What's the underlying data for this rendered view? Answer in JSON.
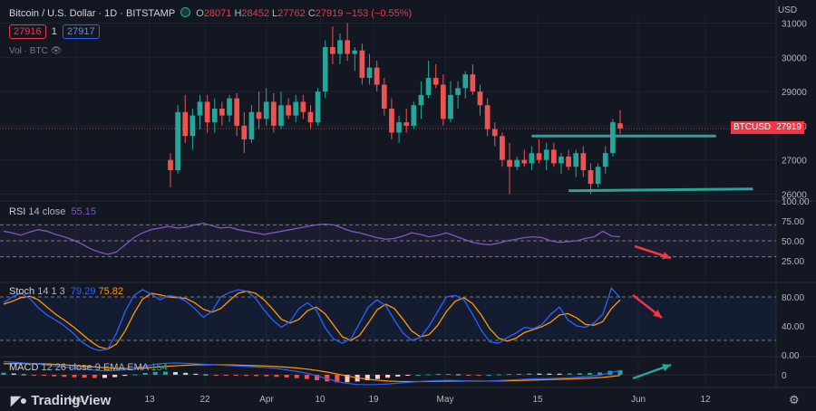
{
  "header": {
    "symbol": "Bitcoin / U.S. Dollar · 1D · BITSTAMP",
    "ohlc": {
      "o_label": "O",
      "o": "28071",
      "h_label": "H",
      "h": "28452",
      "l_label": "L",
      "l": "27762",
      "c_label": "C",
      "c": "27919",
      "change": "−153 (−0.55%)"
    },
    "bid": "27916",
    "spread": "1",
    "ask": "27917",
    "volume_label": "Vol · BTC"
  },
  "axis_currency": "USD",
  "price_label": {
    "symbol": "BTCUSD",
    "value": "27919"
  },
  "rsi_legend": {
    "name": "RSI",
    "params": "14 close",
    "value": "55.15"
  },
  "stoch_legend": {
    "name": "Stoch",
    "params": "14 1 3",
    "k": "79.29",
    "d": "75.82"
  },
  "macd_legend": {
    "name": "MACD",
    "params": "12 26 close 9 EMA EMA",
    "value": "154"
  },
  "logo": "TradingView",
  "colors": {
    "up": "#26a69a",
    "down": "#ef5350",
    "rsi": "#7e57c2",
    "stoch_k": "#2962ff",
    "stoch_d": "#ff9800",
    "annotation_arrow": "#f23645",
    "trend_line": "#26a69a",
    "background": "#131722"
  },
  "chart_data": {
    "type": "candlestick",
    "x_ticks": [
      "Mar",
      "13",
      "22",
      "Apr",
      "10",
      "19",
      "May",
      "15",
      "Jun",
      "12"
    ],
    "price_ticks": [
      31000,
      30000,
      29000,
      28000,
      27000,
      26000
    ],
    "price_range": [
      25800,
      31200
    ],
    "candles": [
      [
        27000,
        27200,
        26200,
        26700
      ],
      [
        26700,
        28600,
        26600,
        28400
      ],
      [
        28400,
        28900,
        27500,
        27700
      ],
      [
        27700,
        28500,
        27300,
        28300
      ],
      [
        28300,
        28900,
        27900,
        28700
      ],
      [
        28700,
        28900,
        27800,
        28100
      ],
      [
        28100,
        28800,
        27800,
        28500
      ],
      [
        28500,
        28700,
        28000,
        28300
      ],
      [
        28300,
        28900,
        28100,
        28800
      ],
      [
        28800,
        28950,
        27700,
        28000
      ],
      [
        28000,
        28400,
        27200,
        27600
      ],
      [
        27600,
        28600,
        27500,
        28400
      ],
      [
        28400,
        29000,
        27900,
        28200
      ],
      [
        28200,
        29100,
        28000,
        28700
      ],
      [
        28700,
        28950,
        27800,
        28000
      ],
      [
        28000,
        29000,
        27900,
        28600
      ],
      [
        28600,
        28800,
        28200,
        28300
      ],
      [
        28300,
        28900,
        28100,
        28700
      ],
      [
        28700,
        28900,
        28200,
        28400
      ],
      [
        28400,
        28600,
        27900,
        28100
      ],
      [
        28100,
        29100,
        28000,
        29000
      ],
      [
        29000,
        30500,
        28800,
        30300
      ],
      [
        30300,
        30900,
        29800,
        30100
      ],
      [
        30100,
        30700,
        29800,
        30500
      ],
      [
        30500,
        31000,
        29900,
        30100
      ],
      [
        30100,
        30300,
        29600,
        30200
      ],
      [
        30200,
        30400,
        29200,
        29400
      ],
      [
        29400,
        30100,
        29200,
        29700
      ],
      [
        29700,
        29900,
        29000,
        29200
      ],
      [
        29200,
        29400,
        28300,
        28500
      ],
      [
        28500,
        28800,
        27600,
        27800
      ],
      [
        27800,
        28300,
        27500,
        28100
      ],
      [
        28100,
        28500,
        27800,
        28000
      ],
      [
        28000,
        28700,
        27900,
        28600
      ],
      [
        28600,
        29300,
        28200,
        28900
      ],
      [
        28900,
        29900,
        28800,
        29400
      ],
      [
        29400,
        29800,
        29100,
        29200
      ],
      [
        29200,
        29500,
        28000,
        28200
      ],
      [
        28200,
        29300,
        28100,
        28900
      ],
      [
        28900,
        29300,
        28500,
        29100
      ],
      [
        29100,
        29600,
        28800,
        29500
      ],
      [
        29500,
        29800,
        28900,
        29000
      ],
      [
        29000,
        29200,
        28300,
        28600
      ],
      [
        28600,
        28800,
        27700,
        27900
      ],
      [
        27900,
        28100,
        27400,
        27700
      ],
      [
        27700,
        27800,
        26800,
        27000
      ],
      [
        27000,
        27500,
        26000,
        26800
      ],
      [
        26800,
        27100,
        26700,
        27000
      ],
      [
        27000,
        27300,
        26800,
        26900
      ],
      [
        26900,
        27400,
        26700,
        27200
      ],
      [
        27200,
        27600,
        26900,
        27000
      ],
      [
        27000,
        27500,
        26700,
        27300
      ],
      [
        27300,
        27500,
        26800,
        26900
      ],
      [
        26900,
        27200,
        26600,
        27100
      ],
      [
        27100,
        27300,
        26700,
        26800
      ],
      [
        26800,
        27300,
        26500,
        27200
      ],
      [
        27200,
        27400,
        26500,
        26700
      ],
      [
        26700,
        26900,
        26000,
        26300
      ],
      [
        26300,
        26900,
        26200,
        26800
      ],
      [
        26800,
        27400,
        26600,
        27200
      ],
      [
        27200,
        28200,
        27100,
        28100
      ],
      [
        28071,
        28452,
        27762,
        27919
      ]
    ],
    "trend_lines": [
      {
        "from": {
          "i": 49,
          "y": 27700
        },
        "to": {
          "i": 74,
          "y": 27700
        }
      },
      {
        "from": {
          "i": 54,
          "y": 26100
        },
        "to": {
          "i": 79,
          "y": 26150
        }
      }
    ],
    "rsi": {
      "range": [
        0,
        100
      ],
      "levels": [
        70,
        50,
        30
      ],
      "ticks": [
        100,
        75,
        50,
        25
      ],
      "values": [
        62,
        60,
        57,
        61,
        64,
        62,
        58,
        55,
        51,
        46,
        40,
        36,
        33,
        36,
        45,
        54,
        60,
        64,
        66,
        68,
        66,
        67,
        70,
        72,
        69,
        66,
        67,
        64,
        62,
        60,
        58,
        60,
        62,
        64,
        66,
        68,
        70,
        71,
        70,
        66,
        62,
        60,
        57,
        54,
        52,
        53,
        56,
        60,
        58,
        55,
        57,
        60,
        56,
        52,
        48,
        46,
        45,
        47,
        50,
        52,
        54,
        55,
        54,
        50,
        48,
        49,
        50,
        53,
        55,
        62,
        56,
        55
      ]
    },
    "stoch": {
      "range": [
        0,
        100
      ],
      "levels": [
        80,
        20
      ],
      "ticks": [
        80,
        40,
        0
      ],
      "k": [
        72,
        80,
        85,
        78,
        65,
        55,
        48,
        40,
        30,
        18,
        10,
        6,
        8,
        30,
        60,
        82,
        90,
        84,
        76,
        82,
        80,
        74,
        64,
        52,
        60,
        80,
        86,
        90,
        88,
        78,
        62,
        48,
        38,
        46,
        64,
        72,
        62,
        38,
        22,
        16,
        22,
        44,
        66,
        76,
        68,
        48,
        30,
        20,
        24,
        40,
        60,
        80,
        82,
        76,
        56,
        34,
        18,
        16,
        24,
        30,
        38,
        36,
        42,
        56,
        66,
        48,
        40,
        38,
        44,
        56,
        92,
        79
      ],
      "d": [
        70,
        74,
        79,
        81,
        76,
        66,
        56,
        48,
        39,
        29,
        19,
        11,
        8,
        15,
        33,
        57,
        77,
        85,
        83,
        80,
        79,
        78,
        72,
        63,
        59,
        64,
        75,
        85,
        88,
        85,
        76,
        63,
        49,
        44,
        49,
        61,
        66,
        57,
        41,
        25,
        20,
        27,
        44,
        62,
        70,
        64,
        49,
        33,
        25,
        28,
        41,
        60,
        74,
        79,
        71,
        55,
        36,
        23,
        19,
        23,
        31,
        35,
        39,
        45,
        55,
        57,
        51,
        42,
        41,
        46,
        64,
        76
      ]
    },
    "macd": {
      "macd": [
        500,
        480,
        450,
        420,
        380,
        340,
        300,
        260,
        220,
        180,
        150,
        160,
        200,
        260,
        330,
        400,
        440,
        450,
        440,
        420,
        400,
        380,
        360,
        340,
        320,
        300,
        280,
        240,
        190,
        130,
        60,
        -40,
        -150,
        -260,
        -330,
        -370,
        -380,
        -370,
        -350,
        -320,
        -290,
        -260,
        -240,
        -220,
        -210,
        -220,
        -240,
        -250,
        -240,
        -220,
        -200,
        -180,
        -160,
        -150,
        -140,
        -130,
        -110,
        -90,
        -60,
        -20,
        80,
        154
      ],
      "signal": [
        420,
        430,
        430,
        425,
        415,
        400,
        380,
        355,
        330,
        300,
        270,
        250,
        240,
        245,
        260,
        290,
        320,
        345,
        365,
        380,
        385,
        385,
        380,
        372,
        362,
        350,
        336,
        317,
        291,
        259,
        219,
        167,
        104,
        31,
        -46,
        -115,
        -170,
        -210,
        -238,
        -254,
        -261,
        -261,
        -257,
        -250,
        -242,
        -238,
        -238,
        -240,
        -240,
        -236,
        -229,
        -219,
        -207,
        -195,
        -184,
        -173,
        -161,
        -147,
        -130,
        -108,
        -70,
        -25
      ],
      "x_from": 0
    }
  }
}
